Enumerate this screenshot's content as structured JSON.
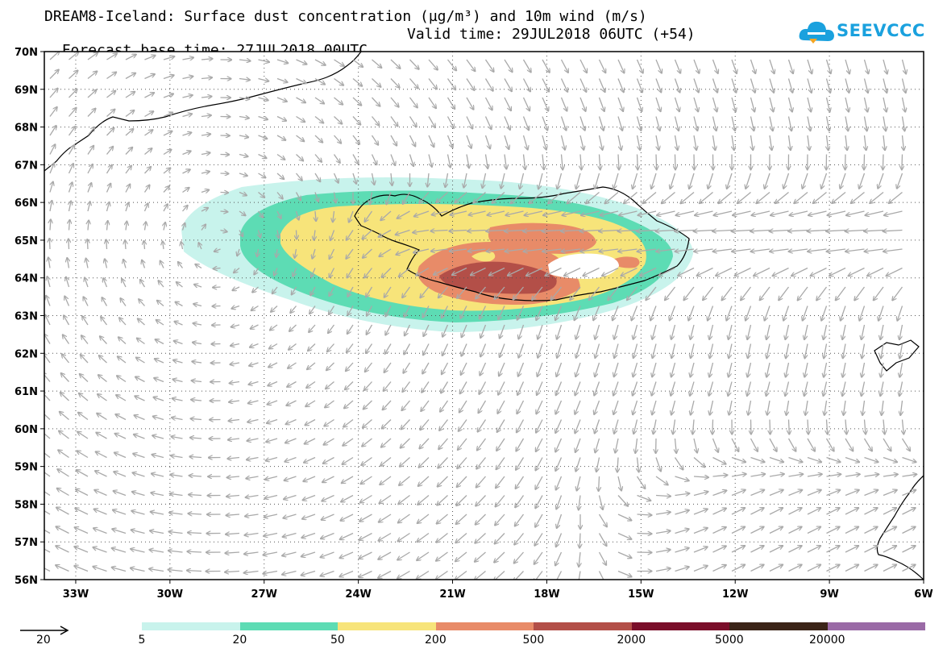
{
  "title_line1": "DREAM8-Iceland: Surface dust concentration (µg/m³) and 10m wind (m/s)",
  "title_line2": "Forecast base time: 27JUL2018 00UTC",
  "valid_time": "Valid time: 29JUL2018 06UTC (+54)",
  "logo_text": "SEEVCCC",
  "map": {
    "lat_labels": [
      "70N",
      "69N",
      "68N",
      "67N",
      "66N",
      "65N",
      "64N",
      "63N",
      "62N",
      "61N",
      "60N",
      "59N",
      "58N",
      "57N",
      "56N"
    ],
    "lon_labels": [
      "33W",
      "30W",
      "27W",
      "24W",
      "21W",
      "18W",
      "15W",
      "12W",
      "9W",
      "6W"
    ],
    "lat_range": [
      56,
      70
    ],
    "lon_range": [
      -34.0,
      -6.0
    ],
    "grid": "dotted",
    "wind_arrow_color": "#a9a9a9"
  },
  "legend": {
    "ref_label": "20",
    "levels": [
      "5",
      "20",
      "50",
      "200",
      "500",
      "2000",
      "5000",
      "20000"
    ],
    "colors": [
      "#c8f3ec",
      "#5ddcb4",
      "#f7e47a",
      "#e88b68",
      "#b34f48",
      "#7a0e2a",
      "#3b2418",
      "#9a6aa6"
    ]
  }
}
